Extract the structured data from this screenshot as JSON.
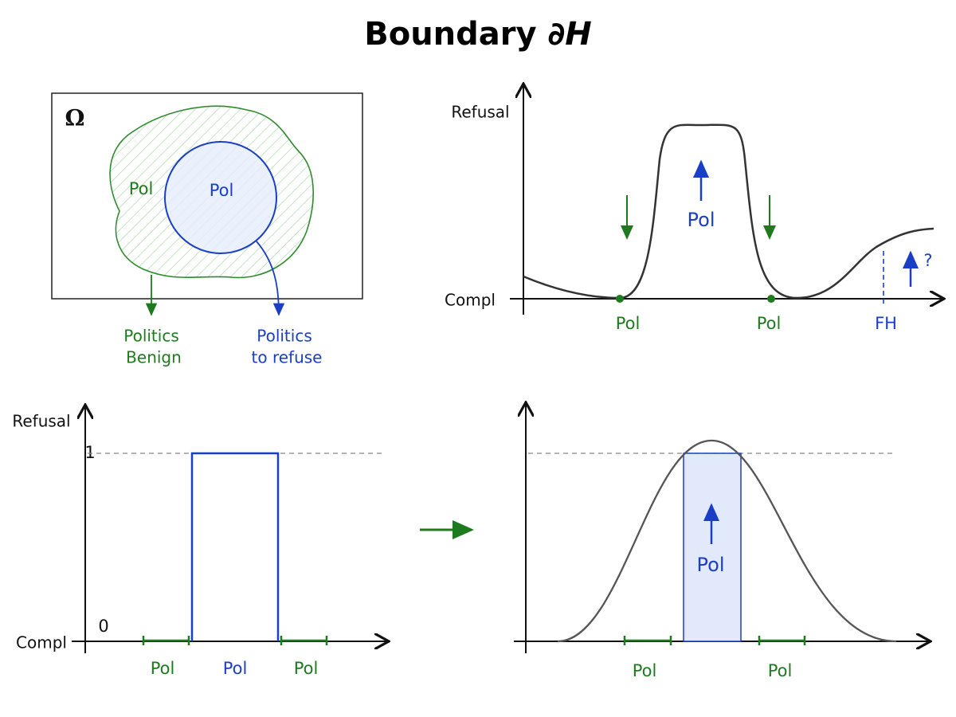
{
  "title": {
    "text": "Boundary",
    "symbol": "∂H"
  },
  "venn": {
    "omega": "Ω",
    "outer_label": "Pol",
    "inner_label": "Pol",
    "outer_caption": [
      "Politics",
      "Benign"
    ],
    "inner_caption": [
      "Politics",
      "to refuse"
    ]
  },
  "top_right": {
    "y_top": "Refusal",
    "y_bottom": "Compl",
    "peak_label": "Pol",
    "x_labels": [
      "Pol",
      "Pol",
      "FH"
    ],
    "question": "?"
  },
  "bottom_left": {
    "y_label": "Refusal",
    "y_one": "1",
    "y_zero": "0",
    "y_bottom": "Compl",
    "x_labels": [
      "Pol",
      "Pol",
      "Pol"
    ]
  },
  "bottom_right": {
    "center_label": "Pol",
    "x_labels": [
      "Pol",
      "Pol"
    ]
  }
}
